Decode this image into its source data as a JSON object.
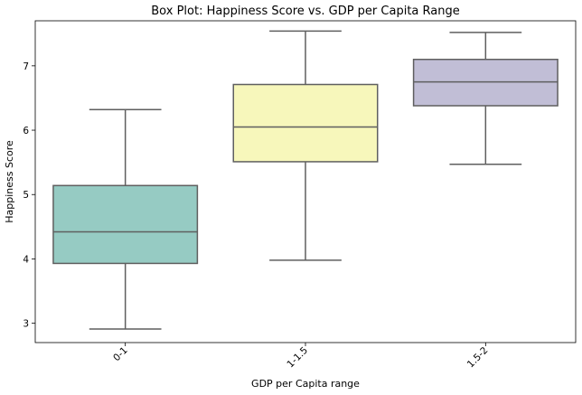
{
  "chart_data": {
    "type": "box",
    "title": "Box Plot: Happiness Score vs. GDP per Capita Range",
    "xlabel": "GDP per Capita range",
    "ylabel": "Happiness Score",
    "ylim": [
      2.7,
      7.7
    ],
    "yticks": [
      3,
      4,
      5,
      6,
      7
    ],
    "categories": [
      "0-1",
      "1-1.5",
      "1.5-2"
    ],
    "boxes": [
      {
        "category": "0-1",
        "whisker_low": 2.91,
        "q1": 3.93,
        "median": 4.42,
        "q3": 5.14,
        "whisker_high": 6.32,
        "color": "#96cbc3"
      },
      {
        "category": "1-1.5",
        "whisker_low": 3.98,
        "q1": 5.51,
        "median": 6.05,
        "q3": 6.71,
        "whisker_high": 7.54,
        "color": "#f7f7bb"
      },
      {
        "category": "1.5-2",
        "whisker_low": 5.47,
        "q1": 6.38,
        "median": 6.75,
        "q3": 7.1,
        "whisker_high": 7.52,
        "color": "#c1bed6"
      }
    ],
    "grid": false,
    "legend": "none",
    "line_color": "#5f5f5f"
  }
}
